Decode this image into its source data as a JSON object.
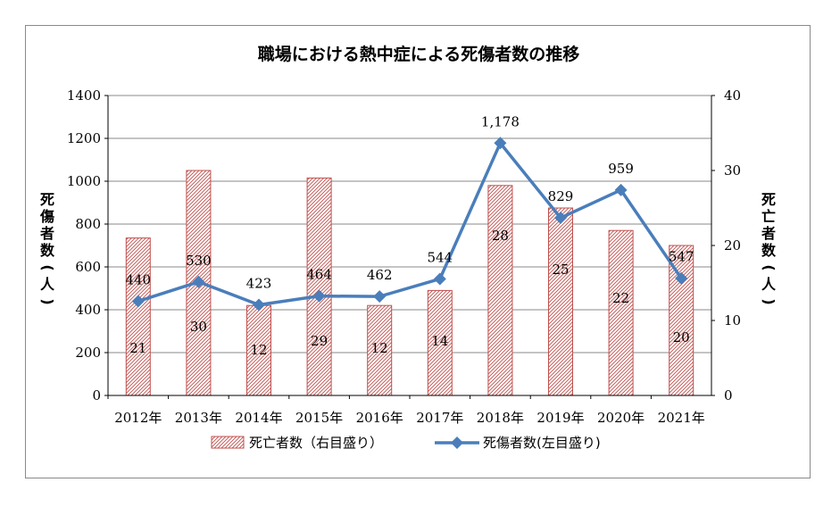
{
  "chart_data": {
    "type": "bar+line",
    "title": "職場における熱中症による死傷者数の推移",
    "categories": [
      "2012年",
      "2013年",
      "2014年",
      "2015年",
      "2016年",
      "2017年",
      "2018年",
      "2019年",
      "2020年",
      "2021年"
    ],
    "series": [
      {
        "name": "死亡者数（右目盛り）",
        "type": "bar",
        "axis": "right",
        "values": [
          21,
          30,
          12,
          29,
          12,
          14,
          28,
          25,
          22,
          20
        ],
        "value_labels": [
          "21",
          "30",
          "12",
          "29",
          "12",
          "14",
          "28",
          "25",
          "22",
          "20"
        ]
      },
      {
        "name": "死傷者数(左目盛り)",
        "type": "line",
        "axis": "left",
        "values": [
          440,
          530,
          423,
          464,
          462,
          544,
          1178,
          829,
          959,
          547
        ],
        "value_labels": [
          "440",
          "530",
          "423",
          "464",
          "462",
          "544",
          "1,178",
          "829",
          "959",
          "547"
        ]
      }
    ],
    "ylabel_left": "死傷者数(人)",
    "ylabel_right": "死亡者数(人)",
    "ylim_left": [
      0,
      1400
    ],
    "ylim_right": [
      0,
      40
    ],
    "yticks_left": [
      "0",
      "200",
      "400",
      "600",
      "800",
      "1000",
      "1200",
      "1400"
    ],
    "yticks_right": [
      "0",
      "10",
      "20",
      "30",
      "40"
    ],
    "grid": true,
    "legend": "bottom",
    "colors": {
      "bar": "#c0504d",
      "line": "#4a7ebb",
      "grid": "#888888"
    }
  }
}
